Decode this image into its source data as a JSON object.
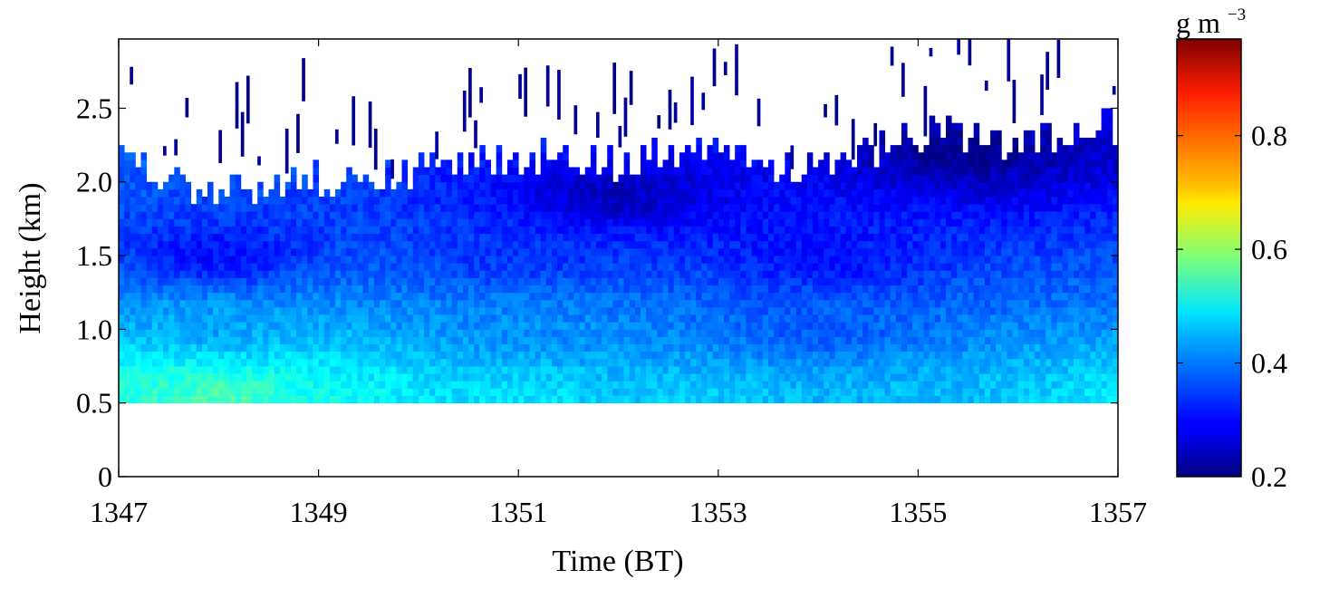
{
  "chart_data": {
    "type": "heatmap",
    "title": "",
    "xlabel": "Time (BT)",
    "ylabel": "Height (km)",
    "xlim": [
      1347,
      1357
    ],
    "ylim": [
      0,
      2.97
    ],
    "x_ticks": [
      "1347",
      "1349",
      "1351",
      "1353",
      "1355",
      "1357"
    ],
    "y_ticks": [
      "0",
      "0.5",
      "1.0",
      "1.5",
      "2.0",
      "2.5"
    ],
    "colorbar": {
      "label_base": "g m",
      "label_exponent": "−3",
      "range": [
        0.2,
        0.97
      ],
      "ticks": [
        "0.2",
        "0.4",
        "0.6",
        "0.8"
      ],
      "colormap": "jet"
    },
    "data_min_height_km": 0.5,
    "cloud_top_km": [
      {
        "time": 1347.0,
        "height": 2.2
      },
      {
        "time": 1347.5,
        "height": 1.95
      },
      {
        "time": 1348.0,
        "height": 1.9
      },
      {
        "time": 1348.5,
        "height": 1.95
      },
      {
        "time": 1349.0,
        "height": 2.0
      },
      {
        "time": 1349.5,
        "height": 2.0
      },
      {
        "time": 1350.0,
        "height": 2.05
      },
      {
        "time": 1350.5,
        "height": 2.1
      },
      {
        "time": 1351.0,
        "height": 2.15
      },
      {
        "time": 1351.5,
        "height": 2.15
      },
      {
        "time": 1352.0,
        "height": 2.1
      },
      {
        "time": 1352.5,
        "height": 2.15
      },
      {
        "time": 1353.0,
        "height": 2.15
      },
      {
        "time": 1353.5,
        "height": 2.1
      },
      {
        "time": 1354.0,
        "height": 2.1
      },
      {
        "time": 1354.5,
        "height": 2.15
      },
      {
        "time": 1355.0,
        "height": 2.3
      },
      {
        "time": 1355.5,
        "height": 2.3
      },
      {
        "time": 1356.0,
        "height": 2.2
      },
      {
        "time": 1356.5,
        "height": 2.3
      },
      {
        "time": 1356.9,
        "height": 2.35
      }
    ],
    "liquid_water_content_g_m3": [
      {
        "time": 1347.5,
        "height": 0.55,
        "value": 0.52
      },
      {
        "time": 1348.0,
        "height": 0.55,
        "value": 0.56
      },
      {
        "time": 1349.0,
        "height": 0.55,
        "value": 0.5
      },
      {
        "time": 1351.0,
        "height": 0.55,
        "value": 0.47
      },
      {
        "time": 1353.0,
        "height": 0.55,
        "value": 0.45
      },
      {
        "time": 1355.0,
        "height": 0.55,
        "value": 0.44
      },
      {
        "time": 1356.9,
        "height": 0.55,
        "value": 0.47
      },
      {
        "time": 1348.0,
        "height": 1.0,
        "value": 0.42
      },
      {
        "time": 1351.0,
        "height": 1.0,
        "value": 0.4
      },
      {
        "time": 1354.0,
        "height": 1.0,
        "value": 0.36
      },
      {
        "time": 1348.0,
        "height": 1.5,
        "value": 0.3
      },
      {
        "time": 1351.0,
        "height": 1.5,
        "value": 0.33
      },
      {
        "time": 1354.0,
        "height": 1.5,
        "value": 0.3
      },
      {
        "time": 1352.0,
        "height": 1.9,
        "value": 0.24
      },
      {
        "time": 1355.5,
        "height": 2.2,
        "value": 0.21
      }
    ]
  },
  "colors": {
    "background": "#ffffff",
    "axis": "#000000"
  }
}
